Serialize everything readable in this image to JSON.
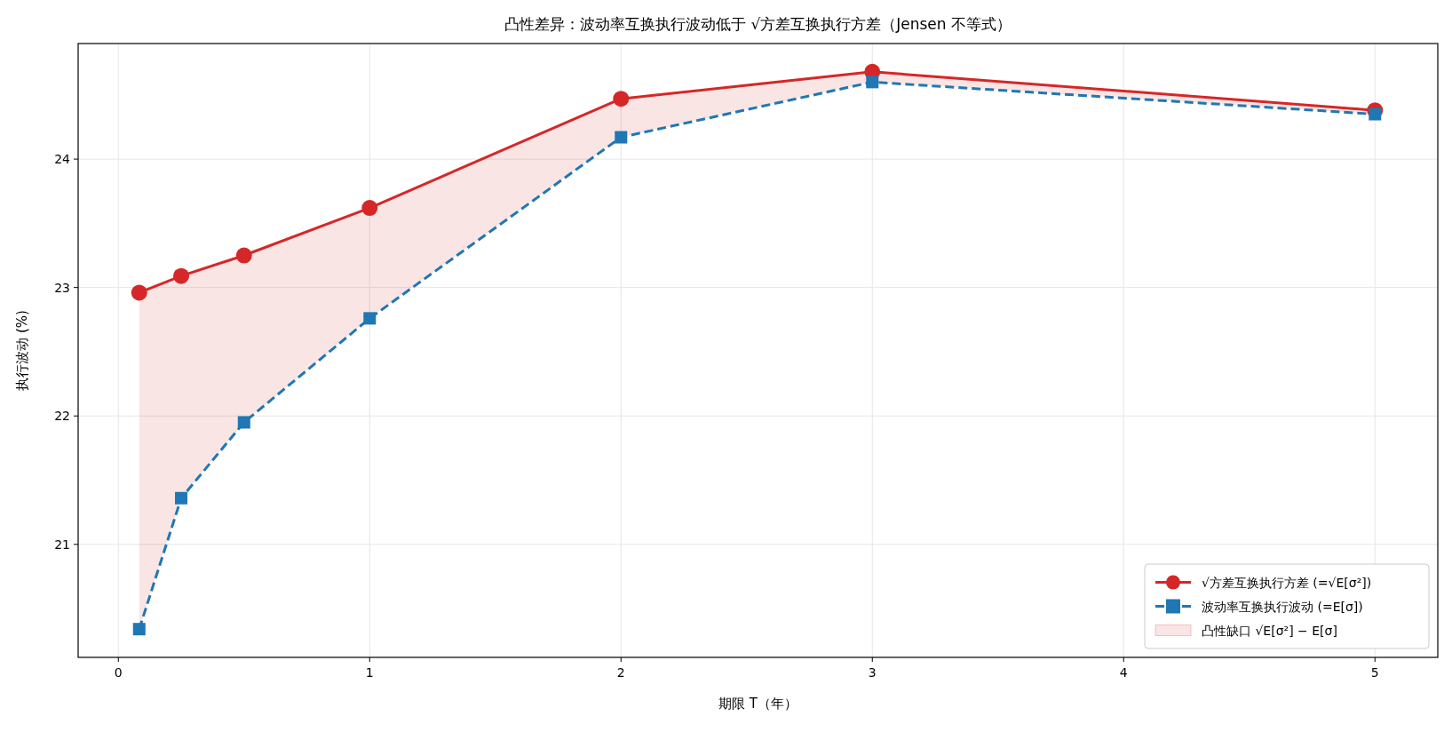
{
  "chart_data": {
    "type": "line",
    "title": "凸性差异：波动率互换执行波动低于 √方差互换执行方差（Jensen 不等式）",
    "xlabel": "期限 T（年）",
    "ylabel": "执行波动 (%)",
    "x": [
      0.083,
      0.25,
      0.5,
      1,
      2,
      3,
      5
    ],
    "series": [
      {
        "name": "√方差互换执行方差 (=√E[σ²])",
        "color": "#d62728",
        "marker": "circle",
        "line_style": "solid",
        "values": [
          22.96,
          23.09,
          23.25,
          23.62,
          24.47,
          24.68,
          24.38
        ],
        "lower": [
          20.34,
          21.36,
          21.95,
          22.76,
          24.17,
          24.6,
          24.35
        ],
        "upper": [
          22.96,
          23.09,
          23.25,
          23.62,
          24.47,
          24.68,
          24.38
        ]
      },
      {
        "name": "波动率互换执行波动 (=E[σ])",
        "color": "#1f77b4",
        "marker": "square",
        "line_style": "dashed",
        "values": [
          20.34,
          21.36,
          21.95,
          22.76,
          24.17,
          24.6,
          24.35
        ]
      }
    ],
    "annotations": [
      "凸性缺口 √E[σ²] − E[σ]"
    ],
    "xlim": [
      -0.16,
      5.25
    ],
    "ylim": [
      20.12,
      24.9
    ],
    "xticks": [
      0,
      1,
      2,
      3,
      4,
      5
    ],
    "yticks": [
      21,
      22,
      23,
      24
    ],
    "grid": true,
    "legend": "bottom right"
  }
}
